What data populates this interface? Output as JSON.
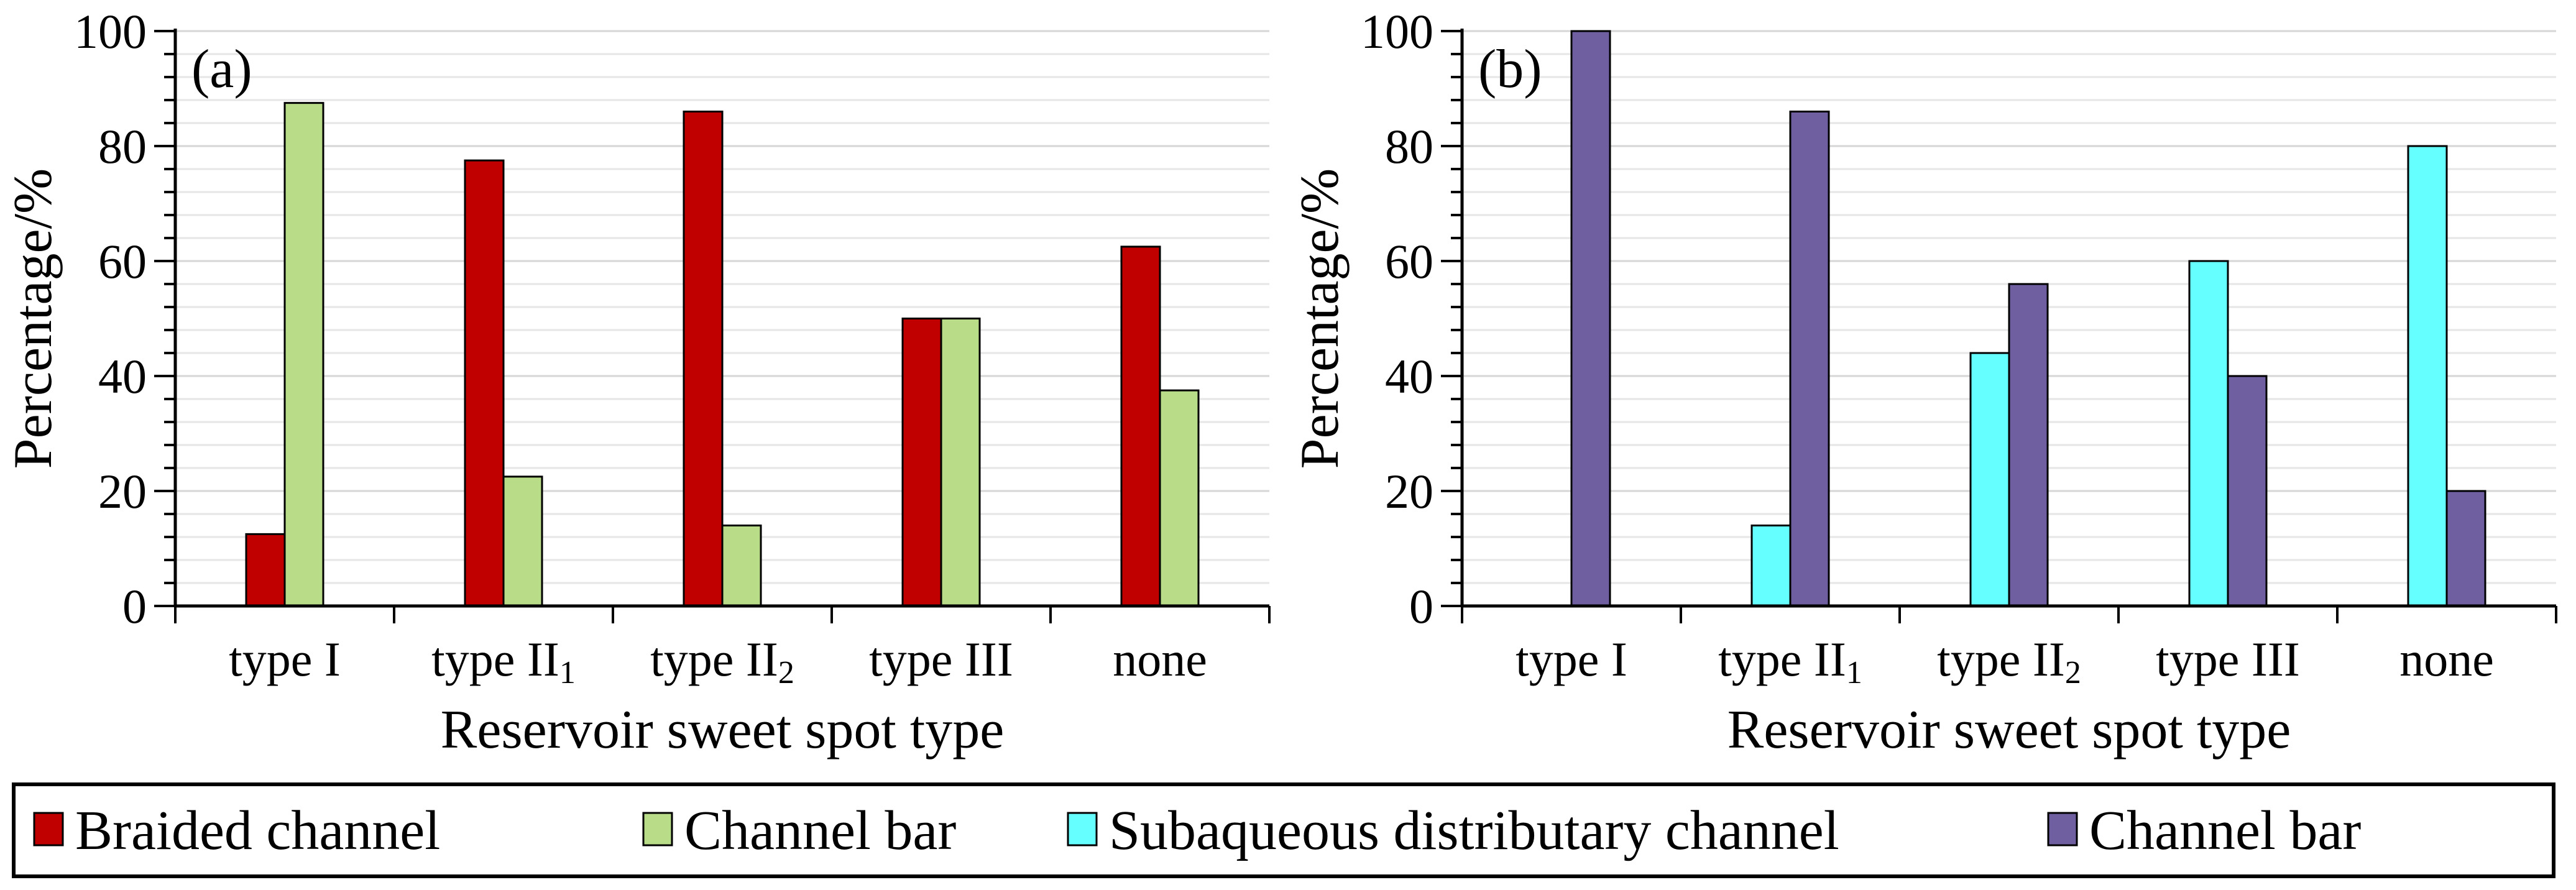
{
  "chart_data": [
    {
      "type": "bar",
      "panel_label": "(a)",
      "categories": [
        {
          "base": "type I",
          "sub": ""
        },
        {
          "base": "type II",
          "sub": "1"
        },
        {
          "base": "type II",
          "sub": "2"
        },
        {
          "base": "type III",
          "sub": ""
        },
        {
          "base": "none",
          "sub": ""
        }
      ],
      "series": [
        {
          "name": "Braided channel",
          "color": "#c00000",
          "values": [
            12.5,
            77.5,
            86,
            50,
            62.5
          ]
        },
        {
          "name": "Channel bar",
          "color": "#b8dc88",
          "values": [
            87.5,
            22.5,
            14,
            50,
            37.5
          ]
        }
      ],
      "xlabel": "Reservoir sweet spot type",
      "ylabel": "Percentage/%",
      "ylim": [
        0,
        100
      ],
      "yticks": [
        "0",
        "20",
        "40",
        "60",
        "80",
        "100"
      ],
      "grid": true
    },
    {
      "type": "bar",
      "panel_label": "(b)",
      "categories": [
        {
          "base": "type I",
          "sub": ""
        },
        {
          "base": "type II",
          "sub": "1"
        },
        {
          "base": "type II",
          "sub": "2"
        },
        {
          "base": "type III",
          "sub": ""
        },
        {
          "base": "none",
          "sub": ""
        }
      ],
      "series": [
        {
          "name": "Subaqueous distributary channel",
          "color": "#66ffff",
          "values": [
            0,
            14,
            44,
            60,
            80
          ]
        },
        {
          "name": "Channel bar",
          "color": "#6f5fa0",
          "values": [
            100,
            86,
            56,
            40,
            20
          ]
        }
      ],
      "xlabel": "Reservoir sweet spot type",
      "ylabel": "Percentage/%",
      "ylim": [
        0,
        100
      ],
      "yticks": [
        "0",
        "20",
        "40",
        "60",
        "80",
        "100"
      ],
      "grid": true
    }
  ],
  "legend": {
    "placement": "bottom",
    "items": [
      {
        "label": "Braided channel",
        "color": "#c00000"
      },
      {
        "label": "Channel bar",
        "color": "#b8dc88"
      },
      {
        "label": "Subaqueous distributary channel",
        "color": "#66ffff"
      },
      {
        "label": "Channel bar",
        "color": "#6f5fa0"
      }
    ]
  }
}
